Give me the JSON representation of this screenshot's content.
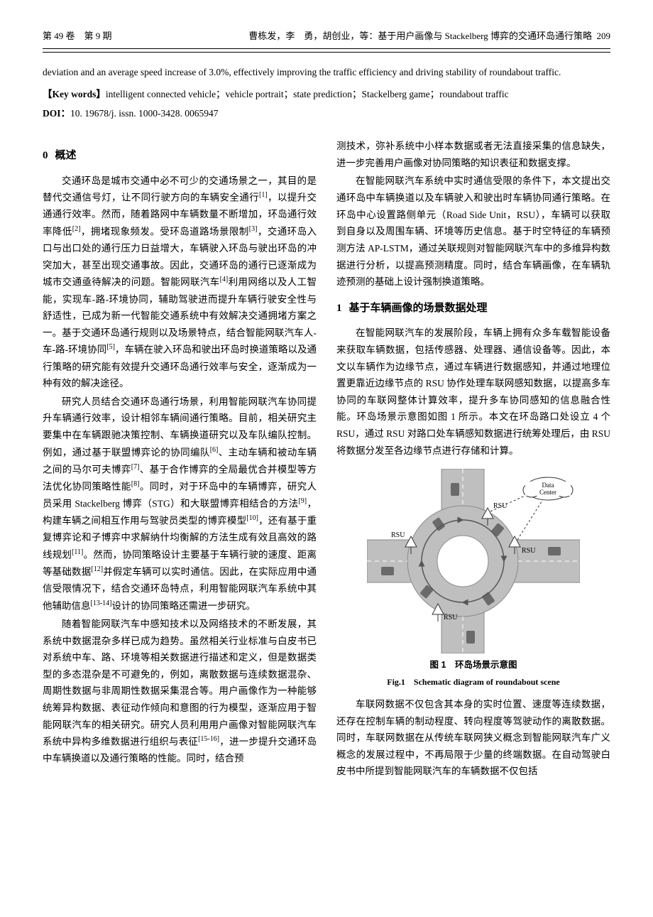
{
  "header": {
    "left": "第 49 卷　第 9 期",
    "center": "曹栋发，李　勇，胡创业，等：基于用户画像与 Stackelberg 博弈的交通环岛通行策略",
    "page": "209"
  },
  "abstract_en": "deviation and an average speed increase of 3.0%, effectively improving the traffic efficiency and driving stability of roundabout traffic.",
  "keywords_label": "【Key words】",
  "keywords": "intelligent connected vehicle；vehicle portrait；state prediction；Stackelberg game；roundabout traffic",
  "doi_label": "DOI：",
  "doi": "10. 19678/j. issn. 1000-3428. 0065947",
  "sections": {
    "s0": {
      "num": "0",
      "title": "概述"
    },
    "s1": {
      "num": "1",
      "title": "基于车辆画像的场景数据处理"
    }
  },
  "paras": {
    "p1": "交通环岛是城市交通中必不可少的交通场景之一，其目的是替代交通信号灯，让不同行驶方向的车辆安全通行[1]，以提升交通通行效率。然而，随着路网中车辆数量不断增加，环岛通行效率降低[2]，拥堵现象频发。受环岛道路场景限制[3]，交通环岛入口与出口处的通行压力日益增大，车辆驶入环岛与驶出环岛的冲突加大，甚至出现交通事故。因此，交通环岛的通行已逐渐成为城市交通亟待解决的问题。智能网联汽车[4]利用网络以及人工智能，实现车-路-环境协同，辅助驾驶进而提升车辆行驶安全性与舒适性，已成为新一代智能交通系统中有效解决交通拥堵方案之一。基于交通环岛通行规则以及场景特点，结合智能网联汽车人-车-路-环境协同[5]，车辆在驶入环岛和驶出环岛时换道策略以及通行策略的研究能有效提升交通环岛通行效率与安全，逐渐成为一种有效的解决途径。",
    "p2": "研究人员结合交通环岛通行场景，利用智能网联汽车协同提升车辆通行效率，设计相邻车辆间通行策略。目前，相关研究主要集中在车辆跟驰决策控制、车辆换道研究以及车队编队控制。例如，通过基于联盟博弈论的协同编队[6]、主动车辆和被动车辆之间的马尔可夫博弈[7]、基于合作博弈的全局最优合并模型等方法优化协同策略性能[8]。同时，对于环岛中的车辆博弈，研究人员采用 Stackelberg 博弈（STG）和大联盟博弈相结合的方法[9]，构建车辆之间相互作用与驾驶员类型的博弈模型[10]，还有基于重复博弈论和子博弈中求解纳什均衡解的方法生成有效且高效的路线规划[11]。然而，协同策略设计主要基于车辆行驶的速度、距离等基础数据[12]并假定车辆可以实时通信。因此，在实际应用中通信受限情况下，结合交通环岛特点，利用智能网联汽车系统中其他辅助信息[13-14]设计的协同策略还需进一步研究。",
    "p3": "随着智能网联汽车中感知技术以及网络技术的不断发展，其系统中数据混杂多样已成为趋势。虽然相关行业标准与白皮书已对系统中车、路、环境等相关数据进行描述和定义，但是数据类型的多态混杂是不可避免的，例如，离散数据与连续数据混杂、周期性数据与非周期性数据采集混合等。用户画像作为一种能够统筹异构数据、表征动作倾向和意图的行为模型，逐渐应用于智能网联汽车的相关研究。研究人员利用用户画像对智能网联汽车系统中异构多维数据进行组织与表征[15-16]，进一步提升交通环岛中车辆换道以及通行策略的性能。同时，结合预",
    "p4": "测技术，弥补系统中小样本数据或者无法直接采集的信息缺失，进一步完善用户画像对协同策略的知识表征和数据支撑。",
    "p5": "在智能网联汽车系统中实时通信受限的条件下，本文提出交通环岛中车辆换道以及车辆驶入和驶出时车辆协同通行策略。在环岛中心设置路侧单元（Road Side Unit，RSU），车辆可以获取到自身以及周围车辆、环境等历史信息。基于时空特征的车辆预测方法 AP-LSTM，通过关联规则对智能网联汽车中的多维异构数据进行分析，以提高预测精度。同时，结合车辆画像，在车辆轨迹预测的基础上设计强制换道策略。",
    "p6": "在智能网联汽车的发展阶段，车辆上拥有众多车载智能设备来获取车辆数据，包括传感器、处理器、通信设备等。因此，本文以车辆作为边缘节点，通过车辆进行数据感知，并通过地理位置更靠近边缘节点的 RSU 协作处理车联网感知数据，以提高多车协同的车联网整体计算效率，提升多车协同感知的信息融合性能。环岛场景示意图如图 1 所示。本文在环岛路口处设立 4 个 RSU，通过 RSU 对路口处车辆感知数据进行统筹处理后，由 RSU 将数据分发至各边缘节点进行存储和计算。",
    "p7": "车联网数据不仅包含其本身的实时位置、速度等连续数据，还存在控制车辆的制动程度、转向程度等驾驶动作的离散数据。同时，车联网数据在从传统车联网狭义概念到智能网联汽车广义概念的发展过程中，不再局限于少量的终端数据。在自动驾驶白皮书中所提到智能网联汽车的车辆数据不仅包括"
  },
  "figure1": {
    "caption_cn": "图 1　环岛场景示意图",
    "caption_en": "Fig.1　Schematic diagram of roundabout scene",
    "labels": {
      "rsu": "RSU",
      "data_center": "Data\nCenter"
    },
    "colors": {
      "road": "#bfbfbf",
      "road_stroke": "#8a8a8a",
      "lane": "#ffffff",
      "car": "#6a6a6a",
      "arrow": "#555555",
      "rsu_line": "#333333",
      "cloud_stroke": "#333333",
      "cloud_fill": "#ffffff",
      "text": "#000000"
    }
  }
}
